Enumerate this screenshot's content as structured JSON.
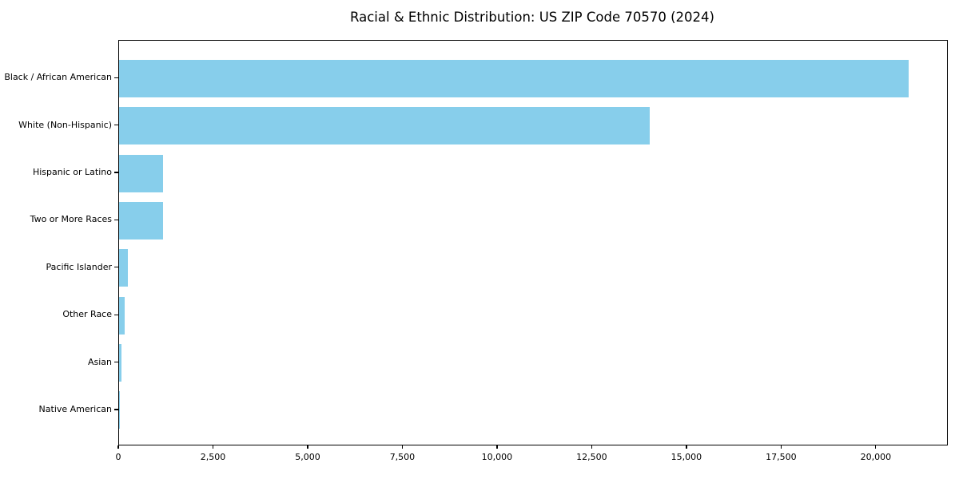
{
  "title": "Racial & Ethnic Distribution: US ZIP Code 70570 (2024)",
  "chart_data": {
    "type": "bar",
    "orientation": "horizontal",
    "title": "Racial & Ethnic Distribution: US ZIP Code 70570 (2024)",
    "xlabel": "",
    "ylabel": "",
    "categories": [
      "Black / African American",
      "White (Non-Hispanic)",
      "Hispanic or Latino",
      "Two or More Races",
      "Pacific Islander",
      "Other Race",
      "Asian",
      "Native American"
    ],
    "values": [
      20840,
      14020,
      1160,
      1150,
      230,
      150,
      70,
      25
    ],
    "xlim": [
      0,
      21860
    ],
    "x_ticks": [
      0,
      2500,
      5000,
      7500,
      10000,
      12500,
      15000,
      17500,
      20000
    ],
    "x_tick_labels": [
      "0",
      "2,500",
      "5,000",
      "7,500",
      "10,000",
      "12,500",
      "15,000",
      "17,500",
      "20,000"
    ],
    "bar_color": "#87CEEB",
    "frame_color": "#000000",
    "grid": false,
    "legend": null
  }
}
